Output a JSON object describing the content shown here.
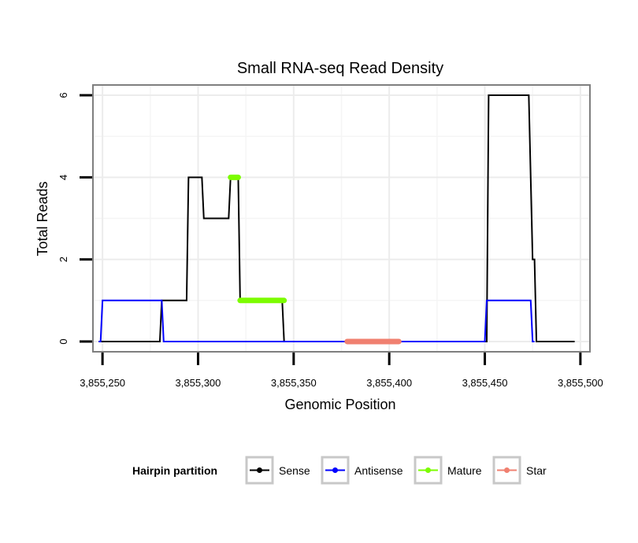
{
  "chart_data": {
    "type": "line",
    "title": "Small RNA-seq Read Density",
    "xlabel": "Genomic Position",
    "ylabel": "Total Reads",
    "xlim": [
      3855245,
      3855505
    ],
    "ylim": [
      -0.25,
      6.25
    ],
    "x_ticks": [
      3855250,
      3855300,
      3855350,
      3855400,
      3855450,
      3855500
    ],
    "x_tick_labels": [
      "3,855,250",
      "3,855,300",
      "3,855,350",
      "3,855,400",
      "3,855,450",
      "3,855,500"
    ],
    "y_ticks": [
      0,
      2,
      4,
      6
    ],
    "y_tick_labels": [
      "0",
      "2",
      "4",
      "6"
    ],
    "grid": true,
    "legend": {
      "title": "Hairpin partition",
      "placement": "bottom",
      "entries": [
        "Sense",
        "Antisense",
        "Mature",
        "Star"
      ]
    },
    "series": [
      {
        "name": "Sense",
        "color": "#000000",
        "x": [
          3855248,
          3855280,
          3855281,
          3855294,
          3855295,
          3855302,
          3855303,
          3855316,
          3855317,
          3855321,
          3855322,
          3855344,
          3855345,
          3855451,
          3855452,
          3855473,
          3855474,
          3855475,
          3855476,
          3855477,
          3855478,
          3855497
        ],
        "y": [
          0,
          0,
          1,
          1,
          4,
          4,
          3,
          3,
          4,
          4,
          1,
          1,
          0,
          0,
          6,
          6,
          4,
          2,
          2,
          0,
          0,
          0
        ]
      },
      {
        "name": "Antisense",
        "color": "#0000ff",
        "x": [
          3855248,
          3855249,
          3855250,
          3855280,
          3855281,
          3855282,
          3855449,
          3855450,
          3855451,
          3855474,
          3855475,
          3855476
        ],
        "y": [
          0,
          0,
          1,
          1,
          1,
          0,
          0,
          0,
          1,
          1,
          0,
          0
        ]
      },
      {
        "name": "Mature",
        "color": "#7cfc00",
        "segments": [
          {
            "x": [
              3855317,
              3855321
            ],
            "y": [
              4,
              4
            ]
          },
          {
            "x": [
              3855322,
              3855345
            ],
            "y": [
              1,
              1
            ]
          }
        ]
      },
      {
        "name": "Star",
        "color": "#f08070",
        "segments": [
          {
            "x": [
              3855378,
              3855405
            ],
            "y": [
              0,
              0
            ]
          }
        ]
      }
    ]
  }
}
